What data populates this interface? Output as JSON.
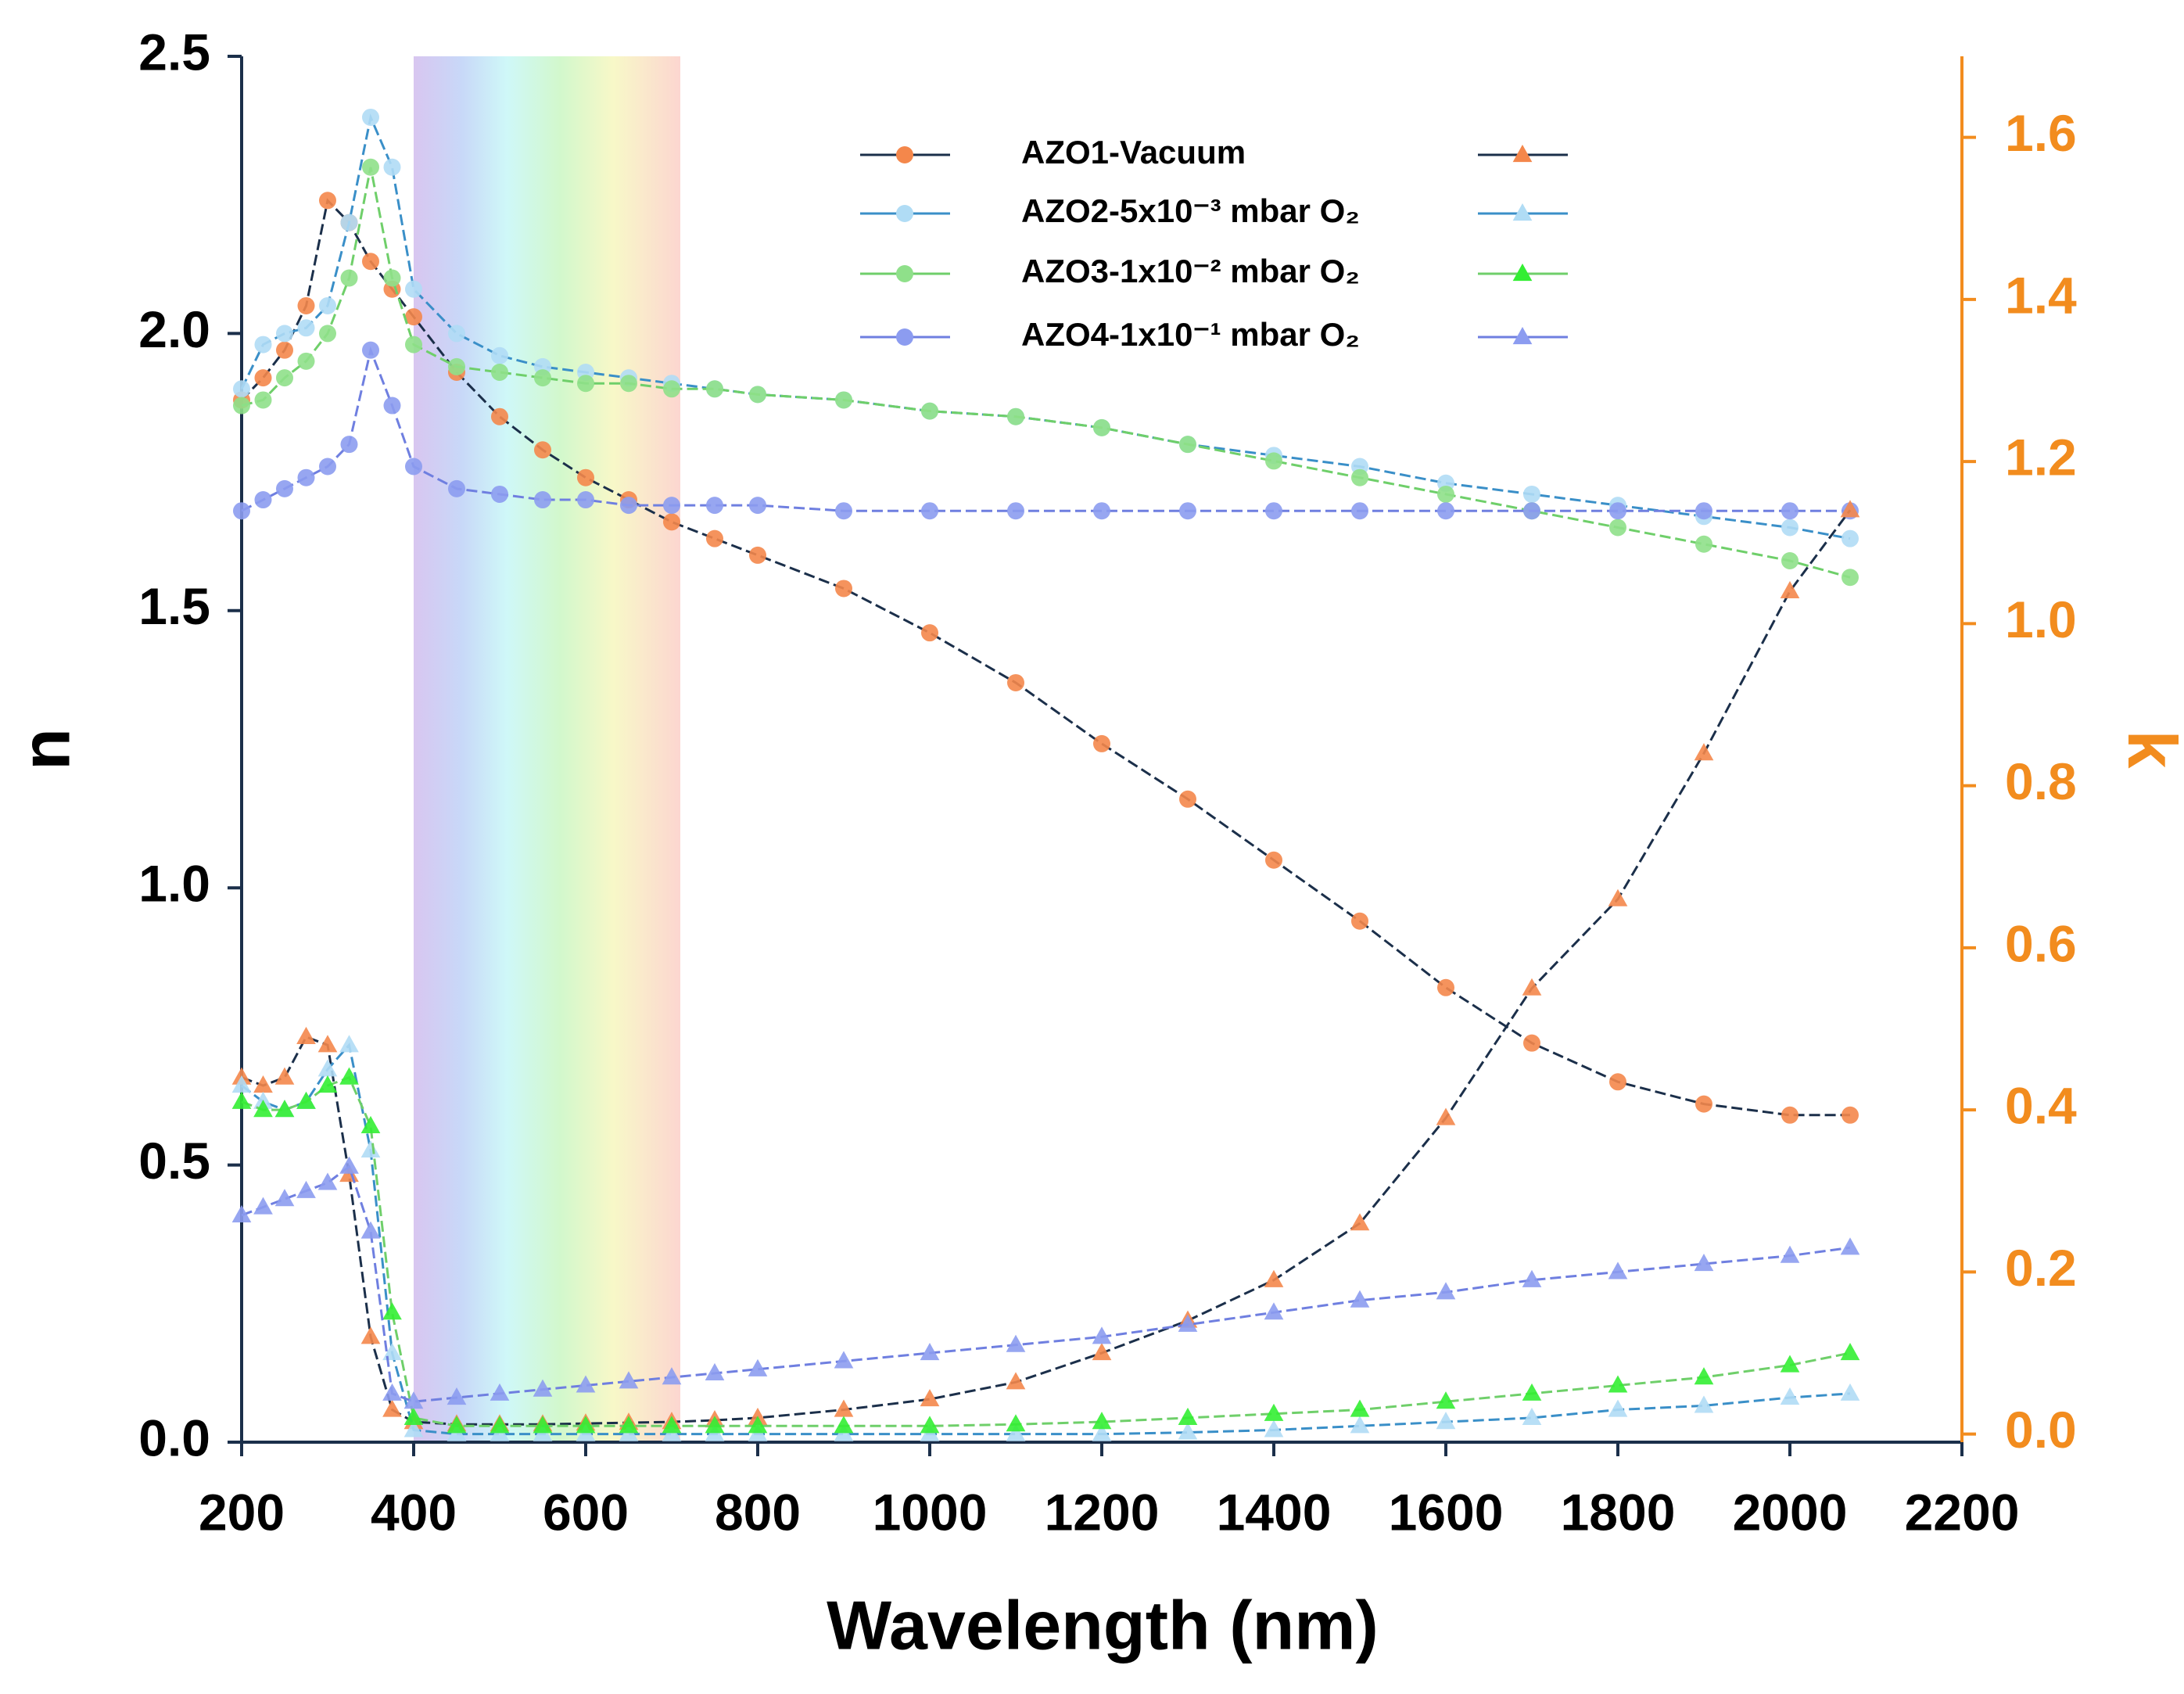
{
  "chart_data": {
    "type": "line",
    "xlabel": "Wavelength (nm)",
    "ylabel": "n",
    "y2label": "k",
    "xlim": [
      200,
      2200
    ],
    "xticks": [
      200,
      400,
      600,
      800,
      1000,
      1200,
      1400,
      1600,
      1800,
      2000,
      2200
    ],
    "ylim": [
      0,
      2.5
    ],
    "yticks": [
      {
        "value": 0,
        "label": "0.0"
      },
      0.5,
      {
        "value": 1,
        "label": "1.0"
      },
      1.5,
      {
        "value": 2,
        "label": "2.0"
      },
      2.5
    ],
    "y2lim": [
      -0.01,
      1.7
    ],
    "y2ticks": [
      {
        "value": 0,
        "label": "0.0"
      },
      0.2,
      0.4,
      0.6,
      0.8,
      {
        "value": 1,
        "label": "1.0"
      },
      1.2,
      1.4,
      1.6
    ],
    "y2color": "#f28c1e",
    "highlight_range": [
      400,
      710
    ],
    "x": [
      200,
      225,
      250,
      275,
      300,
      325,
      350,
      375,
      400,
      450,
      500,
      550,
      600,
      650,
      700,
      750,
      800,
      900,
      1000,
      1100,
      1200,
      1300,
      1400,
      1500,
      1600,
      1700,
      1800,
      1900,
      2000,
      2070
    ],
    "series": [
      {
        "name": "AZO1-Vacuum",
        "color": "#f4874b",
        "line_color": "#1b2f4a",
        "marker": "circle",
        "values": [
          1.88,
          1.92,
          1.97,
          2.05,
          2.24,
          2.2,
          2.13,
          2.08,
          2.03,
          1.93,
          1.85,
          1.79,
          1.74,
          1.7,
          1.66,
          1.63,
          1.6,
          1.54,
          1.46,
          1.37,
          1.26,
          1.16,
          1.05,
          0.94,
          0.82,
          0.72,
          0.65,
          0.61,
          0.59,
          0.59
        ]
      },
      {
        "name": "AZO2-5x10⁻³ mbar O₂",
        "color": "#b0dcf5",
        "line_color": "#3a8fc8",
        "marker": "circle",
        "values": [
          1.9,
          1.98,
          2.0,
          2.01,
          2.05,
          2.2,
          2.39,
          2.3,
          2.08,
          2.0,
          1.96,
          1.94,
          1.93,
          1.92,
          1.91,
          1.9,
          1.89,
          1.88,
          1.86,
          1.85,
          1.83,
          1.8,
          1.78,
          1.76,
          1.73,
          1.71,
          1.69,
          1.67,
          1.65,
          1.63
        ]
      },
      {
        "name": "AZO3-1x10⁻² mbar O₂",
        "color": "#8fe08a",
        "line_color": "#6fcf6a",
        "marker": "circle",
        "values": [
          1.87,
          1.88,
          1.92,
          1.95,
          2.0,
          2.1,
          2.3,
          2.1,
          1.98,
          1.94,
          1.93,
          1.92,
          1.91,
          1.91,
          1.9,
          1.9,
          1.89,
          1.88,
          1.86,
          1.85,
          1.83,
          1.8,
          1.77,
          1.74,
          1.71,
          1.68,
          1.65,
          1.62,
          1.59,
          1.56
        ]
      },
      {
        "name": "AZO4-1x10⁻¹ mbar O₂",
        "color": "#8c9cf0",
        "line_color": "#6f7fe0",
        "marker": "circle",
        "values": [
          1.68,
          1.7,
          1.72,
          1.74,
          1.76,
          1.8,
          1.97,
          1.87,
          1.76,
          1.72,
          1.71,
          1.7,
          1.7,
          1.69,
          1.69,
          1.69,
          1.69,
          1.68,
          1.68,
          1.68,
          1.68,
          1.68,
          1.68,
          1.68,
          1.68,
          1.68,
          1.68,
          1.68,
          1.68,
          1.68
        ]
      },
      {
        "color": "#f4874b",
        "line_color": "#1b2f4a",
        "marker": "triangle",
        "axis": "y2",
        "values": [
          0.44,
          0.43,
          0.44,
          0.49,
          0.48,
          0.32,
          0.12,
          0.03,
          0.015,
          0.012,
          0.012,
          0.012,
          0.013,
          0.014,
          0.015,
          0.017,
          0.02,
          0.03,
          0.043,
          0.064,
          0.1,
          0.14,
          0.19,
          0.26,
          0.39,
          0.55,
          0.66,
          0.84,
          1.04,
          1.14
        ]
      },
      {
        "color": "#b0dcf5",
        "line_color": "#3a8fc8",
        "marker": "triangle",
        "axis": "y2",
        "values": [
          0.43,
          0.41,
          0.4,
          0.41,
          0.45,
          0.48,
          0.35,
          0.1,
          0.005,
          0.0,
          0.0,
          0.0,
          0.0,
          0.0,
          0.0,
          0.0,
          0.0,
          0.0,
          0.0,
          0.0,
          0.0,
          0.002,
          0.005,
          0.01,
          0.015,
          0.02,
          0.03,
          0.035,
          0.045,
          0.05
        ]
      },
      {
        "color": "#33ee33",
        "line_color": "#6fcf6a",
        "marker": "triangle",
        "axis": "y2",
        "values": [
          0.41,
          0.4,
          0.4,
          0.41,
          0.43,
          0.44,
          0.38,
          0.15,
          0.02,
          0.01,
          0.01,
          0.01,
          0.01,
          0.01,
          0.01,
          0.01,
          0.01,
          0.01,
          0.01,
          0.012,
          0.015,
          0.02,
          0.025,
          0.03,
          0.04,
          0.05,
          0.06,
          0.07,
          0.085,
          0.1
        ]
      },
      {
        "color": "#8c9cf0",
        "line_color": "#6f7fe0",
        "marker": "triangle",
        "axis": "y2",
        "values": [
          0.27,
          0.28,
          0.29,
          0.3,
          0.31,
          0.33,
          0.25,
          0.05,
          0.04,
          0.045,
          0.05,
          0.055,
          0.06,
          0.065,
          0.07,
          0.075,
          0.08,
          0.09,
          0.1,
          0.11,
          0.12,
          0.135,
          0.15,
          0.165,
          0.175,
          0.19,
          0.2,
          0.21,
          0.22,
          0.23
        ]
      }
    ]
  }
}
